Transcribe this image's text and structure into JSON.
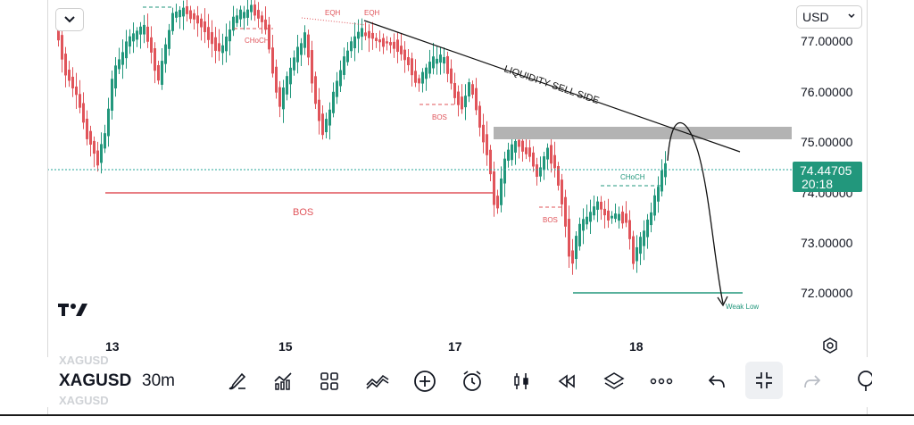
{
  "header": {
    "currency": "USD"
  },
  "price_axis": {
    "labels": [
      "77.00000",
      "76.00000",
      "75.00000",
      "74.00000",
      "73.00000",
      "72.00000"
    ],
    "current_price": "74.44705",
    "countdown": "20:18"
  },
  "time_axis": {
    "labels": [
      "13",
      "15",
      "17",
      "18"
    ]
  },
  "annotations": {
    "eqh_1": "EQH",
    "eqh_2": "EQH",
    "choch_top": "CHoCH",
    "bos_mid": "BOS",
    "bos_main": "BOS",
    "bos_small": "BOS",
    "choch_right": "CHoCH",
    "liquidity": "LIQUIDITY SELL SIDE",
    "weak_low": "Weak Low"
  },
  "toolbar": {
    "symbol": "XAGUSD",
    "interval": "30m",
    "icons": [
      "brush-icon",
      "indicators-icon",
      "layouts-icon",
      "compare-icon",
      "add-icon",
      "alert-icon",
      "chart-type-icon",
      "replay-icon",
      "layers-icon",
      "more-icon",
      "undo-icon",
      "fullscreen-exit-icon",
      "redo-icon",
      "object-tree-icon"
    ]
  },
  "colors": {
    "up": "#22977c",
    "down": "#e0545a",
    "zone": "#b3b3b3",
    "price_line": "#26a69a"
  }
}
